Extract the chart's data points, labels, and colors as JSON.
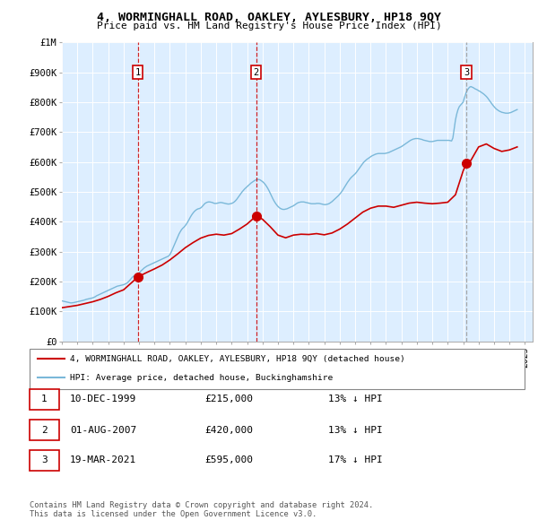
{
  "title": "4, WORMINGHALL ROAD, OAKLEY, AYLESBURY, HP18 9QY",
  "subtitle": "Price paid vs. HM Land Registry's House Price Index (HPI)",
  "hpi_color": "#7ab8d9",
  "price_color": "#cc0000",
  "background_color": "#ddeeff",
  "ylim": [
    0,
    1000000
  ],
  "yticks": [
    0,
    100000,
    200000,
    300000,
    400000,
    500000,
    600000,
    700000,
    800000,
    900000,
    1000000
  ],
  "ytick_labels": [
    "£0",
    "£100K",
    "£200K",
    "£300K",
    "£400K",
    "£500K",
    "£600K",
    "£700K",
    "£800K",
    "£900K",
    "£1M"
  ],
  "sale_events": [
    {
      "date_num": 1999.92,
      "price": 215000,
      "label": "1",
      "line_color": "#cc0000",
      "line_style": "--"
    },
    {
      "date_num": 2007.58,
      "price": 420000,
      "label": "2",
      "line_color": "#cc0000",
      "line_style": "--"
    },
    {
      "date_num": 2021.21,
      "price": 595000,
      "label": "3",
      "line_color": "#999999",
      "line_style": "--"
    }
  ],
  "legend_red": "4, WORMINGHALL ROAD, OAKLEY, AYLESBURY, HP18 9QY (detached house)",
  "legend_blue": "HPI: Average price, detached house, Buckinghamshire",
  "table_rows": [
    {
      "num": "1",
      "date": "10-DEC-1999",
      "price": "£215,000",
      "hpi": "13% ↓ HPI"
    },
    {
      "num": "2",
      "date": "01-AUG-2007",
      "price": "£420,000",
      "hpi": "13% ↓ HPI"
    },
    {
      "num": "3",
      "date": "19-MAR-2021",
      "price": "£595,000",
      "hpi": "17% ↓ HPI"
    }
  ],
  "footer": "Contains HM Land Registry data © Crown copyright and database right 2024.\nThis data is licensed under the Open Government Licence v3.0.",
  "hpi_data_years": [
    1995.0,
    1995.083,
    1995.167,
    1995.25,
    1995.333,
    1995.417,
    1995.5,
    1995.583,
    1995.667,
    1995.75,
    1995.833,
    1995.917,
    1996.0,
    1996.083,
    1996.167,
    1996.25,
    1996.333,
    1996.417,
    1996.5,
    1996.583,
    1996.667,
    1996.75,
    1996.833,
    1996.917,
    1997.0,
    1997.083,
    1997.167,
    1997.25,
    1997.333,
    1997.417,
    1997.5,
    1997.583,
    1997.667,
    1997.75,
    1997.833,
    1997.917,
    1998.0,
    1998.083,
    1998.167,
    1998.25,
    1998.333,
    1998.417,
    1998.5,
    1998.583,
    1998.667,
    1998.75,
    1998.833,
    1998.917,
    1999.0,
    1999.083,
    1999.167,
    1999.25,
    1999.333,
    1999.417,
    1999.5,
    1999.583,
    1999.667,
    1999.75,
    1999.833,
    1999.917,
    2000.0,
    2000.083,
    2000.167,
    2000.25,
    2000.333,
    2000.417,
    2000.5,
    2000.583,
    2000.667,
    2000.75,
    2000.833,
    2000.917,
    2001.0,
    2001.083,
    2001.167,
    2001.25,
    2001.333,
    2001.417,
    2001.5,
    2001.583,
    2001.667,
    2001.75,
    2001.833,
    2001.917,
    2002.0,
    2002.083,
    2002.167,
    2002.25,
    2002.333,
    2002.417,
    2002.5,
    2002.583,
    2002.667,
    2002.75,
    2002.833,
    2002.917,
    2003.0,
    2003.083,
    2003.167,
    2003.25,
    2003.333,
    2003.417,
    2003.5,
    2003.583,
    2003.667,
    2003.75,
    2003.833,
    2003.917,
    2004.0,
    2004.083,
    2004.167,
    2004.25,
    2004.333,
    2004.417,
    2004.5,
    2004.583,
    2004.667,
    2004.75,
    2004.833,
    2004.917,
    2005.0,
    2005.083,
    2005.167,
    2005.25,
    2005.333,
    2005.417,
    2005.5,
    2005.583,
    2005.667,
    2005.75,
    2005.833,
    2005.917,
    2006.0,
    2006.083,
    2006.167,
    2006.25,
    2006.333,
    2006.417,
    2006.5,
    2006.583,
    2006.667,
    2006.75,
    2006.833,
    2006.917,
    2007.0,
    2007.083,
    2007.167,
    2007.25,
    2007.333,
    2007.417,
    2007.5,
    2007.583,
    2007.667,
    2007.75,
    2007.833,
    2007.917,
    2008.0,
    2008.083,
    2008.167,
    2008.25,
    2008.333,
    2008.417,
    2008.5,
    2008.583,
    2008.667,
    2008.75,
    2008.833,
    2008.917,
    2009.0,
    2009.083,
    2009.167,
    2009.25,
    2009.333,
    2009.417,
    2009.5,
    2009.583,
    2009.667,
    2009.75,
    2009.833,
    2009.917,
    2010.0,
    2010.083,
    2010.167,
    2010.25,
    2010.333,
    2010.417,
    2010.5,
    2010.583,
    2010.667,
    2010.75,
    2010.833,
    2010.917,
    2011.0,
    2011.083,
    2011.167,
    2011.25,
    2011.333,
    2011.417,
    2011.5,
    2011.583,
    2011.667,
    2011.75,
    2011.833,
    2011.917,
    2012.0,
    2012.083,
    2012.167,
    2012.25,
    2012.333,
    2012.417,
    2012.5,
    2012.583,
    2012.667,
    2012.75,
    2012.833,
    2012.917,
    2013.0,
    2013.083,
    2013.167,
    2013.25,
    2013.333,
    2013.417,
    2013.5,
    2013.583,
    2013.667,
    2013.75,
    2013.833,
    2013.917,
    2014.0,
    2014.083,
    2014.167,
    2014.25,
    2014.333,
    2014.417,
    2014.5,
    2014.583,
    2014.667,
    2014.75,
    2014.833,
    2014.917,
    2015.0,
    2015.083,
    2015.167,
    2015.25,
    2015.333,
    2015.417,
    2015.5,
    2015.583,
    2015.667,
    2015.75,
    2015.833,
    2015.917,
    2016.0,
    2016.083,
    2016.167,
    2016.25,
    2016.333,
    2016.417,
    2016.5,
    2016.583,
    2016.667,
    2016.75,
    2016.833,
    2016.917,
    2017.0,
    2017.083,
    2017.167,
    2017.25,
    2017.333,
    2017.417,
    2017.5,
    2017.583,
    2017.667,
    2017.75,
    2017.833,
    2017.917,
    2018.0,
    2018.083,
    2018.167,
    2018.25,
    2018.333,
    2018.417,
    2018.5,
    2018.583,
    2018.667,
    2018.75,
    2018.833,
    2018.917,
    2019.0,
    2019.083,
    2019.167,
    2019.25,
    2019.333,
    2019.417,
    2019.5,
    2019.583,
    2019.667,
    2019.75,
    2019.833,
    2019.917,
    2020.0,
    2020.083,
    2020.167,
    2020.25,
    2020.333,
    2020.417,
    2020.5,
    2020.583,
    2020.667,
    2020.75,
    2020.833,
    2020.917,
    2021.0,
    2021.083,
    2021.167,
    2021.25,
    2021.333,
    2021.417,
    2021.5,
    2021.583,
    2021.667,
    2021.75,
    2021.833,
    2021.917,
    2022.0,
    2022.083,
    2022.167,
    2022.25,
    2022.333,
    2022.417,
    2022.5,
    2022.583,
    2022.667,
    2022.75,
    2022.833,
    2022.917,
    2023.0,
    2023.083,
    2023.167,
    2023.25,
    2023.333,
    2023.417,
    2023.5,
    2023.583,
    2023.667,
    2023.75,
    2023.833,
    2023.917,
    2024.0,
    2024.083,
    2024.167,
    2024.25,
    2024.333,
    2024.417,
    2024.5
  ],
  "hpi_data_values": [
    135000,
    134000,
    133000,
    132000,
    131000,
    130000,
    129000,
    128000,
    128500,
    129000,
    130000,
    131000,
    132000,
    133000,
    134000,
    135000,
    136000,
    137000,
    138500,
    140000,
    141000,
    142000,
    143000,
    144000,
    145000,
    147000,
    149000,
    152000,
    154000,
    156000,
    158000,
    160000,
    162000,
    164000,
    166000,
    168000,
    170000,
    172000,
    174000,
    176000,
    178000,
    180000,
    182000,
    184000,
    185000,
    186000,
    187000,
    188000,
    189000,
    191000,
    193000,
    196000,
    200000,
    205000,
    210000,
    215000,
    218000,
    221000,
    224000,
    226000,
    229000,
    233000,
    237000,
    241000,
    245000,
    248000,
    251000,
    253000,
    255000,
    257000,
    259000,
    261000,
    263000,
    265000,
    267000,
    269000,
    271000,
    273000,
    275000,
    277000,
    279000,
    281000,
    283000,
    285000,
    290000,
    298000,
    308000,
    318000,
    328000,
    338000,
    348000,
    358000,
    366000,
    373000,
    378000,
    382000,
    387000,
    393000,
    400000,
    408000,
    416000,
    423000,
    429000,
    434000,
    438000,
    441000,
    443000,
    444000,
    446000,
    450000,
    455000,
    460000,
    463000,
    465000,
    466000,
    466000,
    465000,
    464000,
    462000,
    461000,
    461000,
    462000,
    463000,
    464000,
    464000,
    463000,
    462000,
    461000,
    460000,
    459000,
    459000,
    460000,
    461000,
    463000,
    466000,
    470000,
    475000,
    481000,
    487000,
    493000,
    499000,
    504000,
    509000,
    513000,
    517000,
    521000,
    525000,
    529000,
    532000,
    535000,
    538000,
    540000,
    541000,
    541000,
    540000,
    537000,
    534000,
    530000,
    525000,
    519000,
    512000,
    504000,
    495000,
    486000,
    477000,
    469000,
    462000,
    456000,
    451000,
    447000,
    444000,
    442000,
    441000,
    441000,
    442000,
    443000,
    445000,
    447000,
    449000,
    451000,
    453000,
    456000,
    459000,
    462000,
    464000,
    465000,
    466000,
    466000,
    466000,
    465000,
    464000,
    463000,
    462000,
    461000,
    460000,
    460000,
    460000,
    460000,
    461000,
    461000,
    461000,
    460000,
    459000,
    458000,
    457000,
    457000,
    458000,
    459000,
    461000,
    464000,
    467000,
    471000,
    475000,
    479000,
    483000,
    487000,
    492000,
    497000,
    503000,
    510000,
    517000,
    524000,
    531000,
    537000,
    543000,
    548000,
    552000,
    556000,
    560000,
    565000,
    571000,
    577000,
    583000,
    589000,
    595000,
    600000,
    604000,
    608000,
    611000,
    614000,
    617000,
    620000,
    622000,
    624000,
    626000,
    627000,
    628000,
    628000,
    628000,
    628000,
    628000,
    628000,
    629000,
    630000,
    631000,
    633000,
    635000,
    637000,
    639000,
    641000,
    643000,
    645000,
    647000,
    649000,
    651000,
    654000,
    657000,
    660000,
    663000,
    666000,
    669000,
    672000,
    674000,
    676000,
    677000,
    678000,
    678000,
    678000,
    677000,
    676000,
    675000,
    673000,
    672000,
    671000,
    670000,
    669000,
    668000,
    668000,
    668000,
    669000,
    670000,
    671000,
    672000,
    672000,
    672000,
    672000,
    672000,
    672000,
    672000,
    672000,
    672000,
    672000,
    671000,
    670000,
    680000,
    710000,
    740000,
    760000,
    775000,
    785000,
    790000,
    795000,
    800000,
    815000,
    828000,
    838000,
    845000,
    850000,
    852000,
    850000,
    848000,
    845000,
    843000,
    841000,
    838000,
    836000,
    833000,
    830000,
    827000,
    823000,
    819000,
    814000,
    808000,
    802000,
    796000,
    790000,
    785000,
    780000,
    776000,
    773000,
    770000,
    768000,
    766000,
    765000,
    764000,
    763000,
    763000,
    763000,
    764000,
    765000,
    767000,
    769000,
    771000,
    773000,
    775000
  ],
  "red_data_years": [
    1995.0,
    1995.5,
    1996.0,
    1996.5,
    1997.0,
    1997.5,
    1998.0,
    1998.5,
    1999.0,
    1999.5,
    1999.92,
    2000.5,
    2001.0,
    2001.5,
    2002.0,
    2002.5,
    2003.0,
    2003.5,
    2004.0,
    2004.5,
    2005.0,
    2005.5,
    2006.0,
    2006.5,
    2007.0,
    2007.5,
    2007.58,
    2008.0,
    2008.5,
    2009.0,
    2009.5,
    2010.0,
    2010.5,
    2011.0,
    2011.5,
    2012.0,
    2012.5,
    2013.0,
    2013.5,
    2014.0,
    2014.5,
    2015.0,
    2015.5,
    2016.0,
    2016.5,
    2017.0,
    2017.5,
    2018.0,
    2018.5,
    2019.0,
    2019.5,
    2020.0,
    2020.5,
    2021.0,
    2021.21,
    2021.5,
    2022.0,
    2022.5,
    2023.0,
    2023.5,
    2024.0,
    2024.5
  ],
  "red_data_values": [
    112000,
    116000,
    120000,
    126000,
    132000,
    140000,
    150000,
    162000,
    172000,
    195000,
    215000,
    230000,
    242000,
    255000,
    272000,
    292000,
    313000,
    330000,
    345000,
    354000,
    358000,
    355000,
    360000,
    375000,
    392000,
    415000,
    420000,
    408000,
    383000,
    355000,
    346000,
    355000,
    358000,
    357000,
    360000,
    356000,
    362000,
    375000,
    392000,
    412000,
    432000,
    445000,
    452000,
    452000,
    448000,
    455000,
    462000,
    465000,
    462000,
    460000,
    462000,
    465000,
    490000,
    570000,
    595000,
    605000,
    650000,
    660000,
    645000,
    635000,
    640000,
    650000
  ]
}
